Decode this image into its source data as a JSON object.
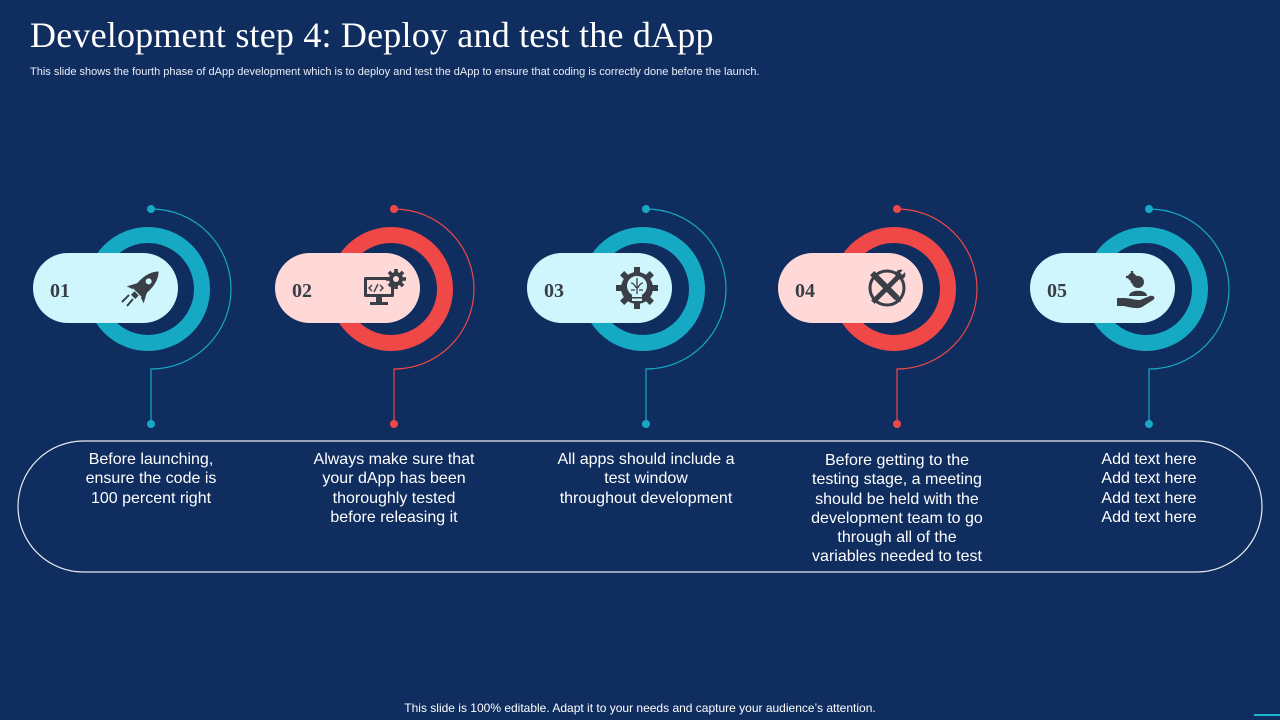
{
  "title": "Development step 4: Deploy and test the dApp",
  "subtitle": "This slide shows the fourth phase of dApp development which is to deploy and test the dApp to ensure that coding is correctly done before the launch.",
  "colors": {
    "background": "#0f2d5f",
    "teal": "#16a9c4",
    "red": "#f04747",
    "pill_teal": "#cff6fd",
    "pill_red": "#ffd9d7",
    "icon": "#3a3f47"
  },
  "steps": [
    {
      "number": "01",
      "icon": "rocket-icon",
      "accent": "teal",
      "text": "Before launching,\nensure the code is\n100 percent right"
    },
    {
      "number": "02",
      "icon": "monitor-code-gear-icon",
      "accent": "red",
      "text": "Always make sure that\nyour dApp has been\nthoroughly  tested\nbefore releasing it"
    },
    {
      "number": "03",
      "icon": "gear-lightbulb-brain-icon",
      "accent": "teal",
      "text": "All apps should include a\ntest window\nthroughout  development"
    },
    {
      "number": "04",
      "icon": "wrench-pencil-cross-icon",
      "accent": "red",
      "text": "Before getting to the\ntesting stage, a meeting\nshould be held with the\ndevelopment team to go\nthrough  all of the\nvariables needed to test"
    },
    {
      "number": "05",
      "icon": "hand-person-gear-icon",
      "accent": "teal",
      "text": "Add text here\nAdd text here\nAdd text here\nAdd text here"
    }
  ],
  "footer": "This slide is 100% editable. Adapt it to your needs and capture your audience’s attention."
}
